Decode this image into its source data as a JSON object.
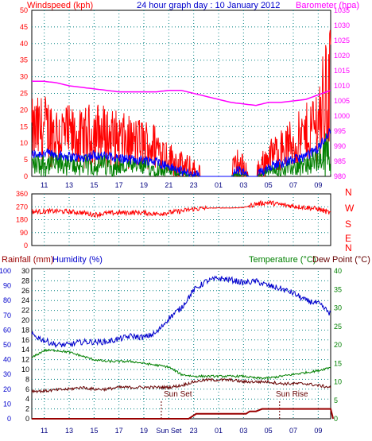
{
  "title": "24 hour graph day : 10 January 2012",
  "colors": {
    "wind_speed": "#ff0000",
    "wind_gust_avg": "#0000ff",
    "wind_avg": "#008000",
    "barometer": "#ff00ff",
    "direction": "#ff0000",
    "humidity": "#0000cc",
    "temperature": "#008000",
    "dewpoint": "#660000",
    "rain": "#990000",
    "grid": "#008080"
  },
  "chart_data": [
    {
      "type": "line",
      "name": "wind-barometer",
      "left_label": "Windspeed (kph)",
      "right_label": "Barometer (hpa)",
      "x_ticks": [
        "11",
        "13",
        "15",
        "17",
        "19",
        "21",
        "23",
        "01",
        "03",
        "05",
        "07",
        "09"
      ],
      "y_left_ticks": [
        "0",
        "5",
        "10",
        "15",
        "20",
        "25",
        "30",
        "35",
        "40",
        "45",
        "50"
      ],
      "y_right_ticks": [
        "980",
        "985",
        "990",
        "995",
        "1000",
        "1005",
        "1010",
        "1015",
        "1020",
        "1025",
        "1030",
        "1035"
      ],
      "ylim_left": [
        0,
        50
      ],
      "ylim_right": [
        980,
        1035
      ],
      "barometer_hpa": [
        [
          0,
          1011.5
        ],
        [
          1,
          1011.5
        ],
        [
          2,
          1011
        ],
        [
          3,
          1010
        ],
        [
          4,
          1009.5
        ],
        [
          5,
          1009
        ],
        [
          6,
          1008.5
        ],
        [
          7,
          1008
        ],
        [
          8,
          1008
        ],
        [
          9,
          1008
        ],
        [
          10,
          1008
        ],
        [
          11,
          1008.5
        ],
        [
          12,
          1008.5
        ],
        [
          13,
          1007.5
        ],
        [
          14,
          1006.5
        ],
        [
          15,
          1005.5
        ],
        [
          16,
          1004.5
        ],
        [
          17,
          1004
        ],
        [
          18,
          1003.5
        ],
        [
          19,
          1004.5
        ],
        [
          20,
          1004.5
        ],
        [
          21,
          1005
        ],
        [
          22,
          1005.5
        ],
        [
          23,
          1007
        ],
        [
          24,
          1008.5
        ]
      ],
      "windspeed_kph_keypoints": [
        [
          0,
          13
        ],
        [
          1,
          14
        ],
        [
          2,
          13
        ],
        [
          3,
          12
        ],
        [
          4,
          11
        ],
        [
          5,
          13
        ],
        [
          6,
          12
        ],
        [
          7,
          11
        ],
        [
          8,
          10
        ],
        [
          9,
          10
        ],
        [
          10,
          9
        ],
        [
          11,
          6
        ],
        [
          12,
          3
        ],
        [
          13,
          1
        ],
        [
          14,
          0
        ],
        [
          15,
          0
        ],
        [
          16,
          0
        ],
        [
          16.5,
          4
        ],
        [
          17,
          2
        ],
        [
          17.5,
          0
        ],
        [
          18,
          0
        ],
        [
          19,
          6
        ],
        [
          20,
          8
        ],
        [
          21,
          10
        ],
        [
          22,
          12
        ],
        [
          23,
          17
        ],
        [
          24,
          28
        ]
      ],
      "windspeed_peak_kph": 43
    },
    {
      "type": "line",
      "name": "wind-direction",
      "right_labels": [
        "N",
        "W",
        "S",
        "E",
        "N"
      ],
      "y_left_ticks": [
        "0",
        "90",
        "180",
        "270",
        "360"
      ],
      "ylim": [
        0,
        360
      ],
      "direction_deg": [
        [
          0,
          235
        ],
        [
          2,
          240
        ],
        [
          4,
          230
        ],
        [
          5,
          215
        ],
        [
          6,
          225
        ],
        [
          7,
          228
        ],
        [
          8,
          230
        ],
        [
          9,
          228
        ],
        [
          10,
          220
        ],
        [
          11,
          230
        ],
        [
          12,
          240
        ],
        [
          13,
          255
        ],
        [
          14,
          260
        ],
        [
          15,
          262
        ],
        [
          16,
          262
        ],
        [
          17,
          265
        ],
        [
          18,
          290
        ],
        [
          19,
          300
        ],
        [
          20,
          285
        ],
        [
          21,
          275
        ],
        [
          22,
          265
        ],
        [
          23,
          255
        ],
        [
          24,
          225
        ]
      ]
    },
    {
      "type": "line",
      "name": "temperature-humidity-rain",
      "left_labels": [
        "Rainfall (mm)",
        "Humidity (%)"
      ],
      "right_labels": [
        "Temperature (°C)",
        "Dew Point (°C)"
      ],
      "annotations": [
        "Sun Set",
        "Sun Rise"
      ],
      "x_ticks": [
        "11",
        "13",
        "15",
        "17",
        "19",
        "Sun Set",
        "23",
        "01",
        "03",
        "05",
        "07",
        "09"
      ],
      "humidity_ticks": [
        "0",
        "10",
        "20",
        "30",
        "40",
        "50",
        "60",
        "70",
        "80",
        "90",
        "100"
      ],
      "rain_ticks": [
        "0",
        "2",
        "4",
        "6",
        "8",
        "10",
        "12",
        "14",
        "16",
        "18",
        "20",
        "22",
        "24",
        "26",
        "28",
        "30"
      ],
      "temp_ticks": [
        "0",
        "5",
        "10",
        "15",
        "20",
        "25",
        "30",
        "35",
        "40"
      ],
      "humidity_pct": [
        [
          0,
          57
        ],
        [
          1,
          53
        ],
        [
          2,
          50
        ],
        [
          3,
          50
        ],
        [
          4,
          52
        ],
        [
          5,
          52
        ],
        [
          6,
          52
        ],
        [
          7,
          54
        ],
        [
          8,
          56
        ],
        [
          9,
          55
        ],
        [
          10,
          58
        ],
        [
          11,
          68
        ],
        [
          12,
          75
        ],
        [
          13,
          87
        ],
        [
          14,
          93
        ],
        [
          15,
          95
        ],
        [
          16,
          94
        ],
        [
          17,
          92
        ],
        [
          18,
          93
        ],
        [
          19,
          90
        ],
        [
          20,
          88
        ],
        [
          21,
          85
        ],
        [
          22,
          80
        ],
        [
          23,
          78
        ],
        [
          24,
          71
        ]
      ],
      "temperature_c": [
        [
          0,
          16.5
        ],
        [
          1,
          18.5
        ],
        [
          2,
          18.5
        ],
        [
          3,
          18
        ],
        [
          4,
          17
        ],
        [
          5,
          16
        ],
        [
          6,
          15.5
        ],
        [
          7,
          15.5
        ],
        [
          8,
          15.5
        ],
        [
          9,
          15
        ],
        [
          10,
          14.5
        ],
        [
          11,
          14
        ],
        [
          12,
          12
        ],
        [
          13,
          11.5
        ],
        [
          14,
          11.5
        ],
        [
          15,
          11.5
        ],
        [
          16,
          11.5
        ],
        [
          17,
          11.5
        ],
        [
          18,
          11
        ],
        [
          19,
          11
        ],
        [
          20,
          11.5
        ],
        [
          21,
          12
        ],
        [
          22,
          12.5
        ],
        [
          23,
          13
        ],
        [
          24,
          14
        ]
      ],
      "dewpoint_c": [
        [
          0,
          7.5
        ],
        [
          1,
          7.5
        ],
        [
          2,
          7.8
        ],
        [
          3,
          8
        ],
        [
          4,
          8.5
        ],
        [
          5,
          8
        ],
        [
          6,
          8
        ],
        [
          7,
          8.5
        ],
        [
          8,
          8.5
        ],
        [
          9,
          8.5
        ],
        [
          10,
          8.5
        ],
        [
          11,
          8.5
        ],
        [
          12,
          9
        ],
        [
          13,
          10
        ],
        [
          14,
          10.5
        ],
        [
          15,
          10.5
        ],
        [
          16,
          10.5
        ],
        [
          17,
          10
        ],
        [
          18,
          10
        ],
        [
          19,
          10
        ],
        [
          20,
          9.5
        ],
        [
          21,
          9.5
        ],
        [
          22,
          9.5
        ],
        [
          23,
          9
        ],
        [
          24,
          8.5
        ]
      ],
      "rainfall_mm": [
        [
          0,
          0
        ],
        [
          12.6,
          0
        ],
        [
          13.2,
          1
        ],
        [
          17.2,
          1
        ],
        [
          17.5,
          1.5
        ],
        [
          18,
          1.5
        ],
        [
          18.5,
          2
        ],
        [
          24,
          2
        ],
        [
          24.2,
          0
        ]
      ]
    }
  ]
}
